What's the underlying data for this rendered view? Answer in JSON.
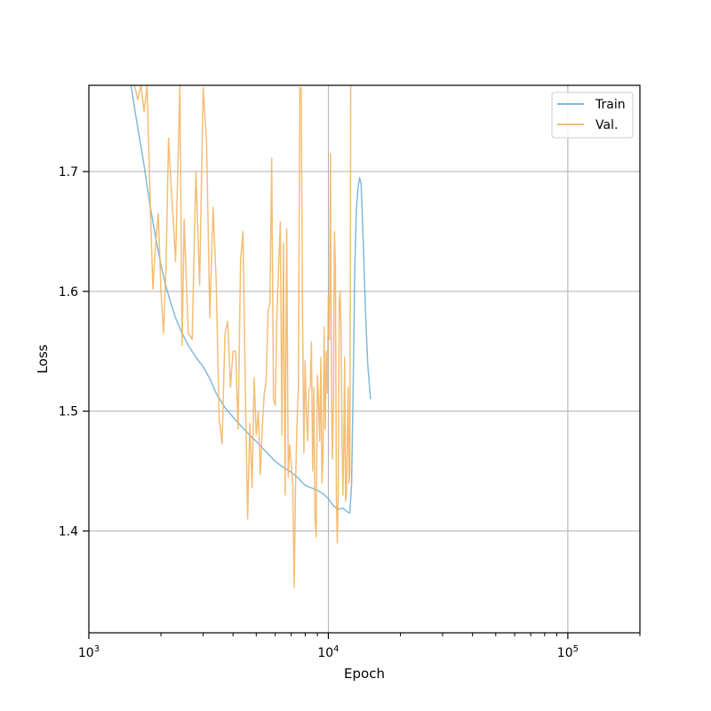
{
  "chart_data": {
    "type": "line",
    "title": "",
    "xlabel": "Epoch",
    "ylabel": "Loss",
    "xscale": "log",
    "xlim": [
      1000,
      200000
    ],
    "ylim": [
      1.315,
      1.772
    ],
    "grid": true,
    "legend_placement": "top-right",
    "x_ticks": [
      {
        "value": 1000,
        "base": "10",
        "exp": "3"
      },
      {
        "value": 10000,
        "base": "10",
        "exp": "4"
      },
      {
        "value": 100000,
        "base": "10",
        "exp": "5"
      }
    ],
    "y_ticks": [
      {
        "value": 1.4,
        "label": "1.4"
      },
      {
        "value": 1.5,
        "label": "1.5"
      },
      {
        "value": 1.6,
        "label": "1.6"
      },
      {
        "value": 1.7,
        "label": "1.7"
      }
    ],
    "series": [
      {
        "name": "Train",
        "color": "#6baed6",
        "x": [
          1500,
          1560,
          1620,
          1700,
          1800,
          1900,
          2000,
          2100,
          2200,
          2300,
          2450,
          2600,
          2800,
          3000,
          3200,
          3400,
          3700,
          4000,
          4300,
          4700,
          5100,
          5500,
          6000,
          6500,
          7000,
          7500,
          8000,
          8500,
          9000,
          9500,
          10000,
          10500,
          11000,
          11500,
          12000,
          12300,
          12500,
          12700,
          12900,
          13100,
          13300,
          13500,
          13700,
          14000,
          14300,
          14600,
          15000
        ],
        "y": [
          1.772,
          1.75,
          1.73,
          1.705,
          1.672,
          1.645,
          1.622,
          1.604,
          1.59,
          1.578,
          1.565,
          1.555,
          1.545,
          1.537,
          1.527,
          1.515,
          1.503,
          1.495,
          1.488,
          1.48,
          1.473,
          1.466,
          1.458,
          1.453,
          1.449,
          1.444,
          1.438,
          1.436,
          1.434,
          1.431,
          1.427,
          1.421,
          1.418,
          1.419,
          1.416,
          1.415,
          1.44,
          1.52,
          1.62,
          1.668,
          1.686,
          1.695,
          1.69,
          1.64,
          1.582,
          1.54,
          1.51
        ]
      },
      {
        "name": "Val.",
        "color": "#f2b35e",
        "x": [
          1550,
          1600,
          1650,
          1700,
          1750,
          1800,
          1850,
          1900,
          1950,
          2000,
          2050,
          2100,
          2150,
          2200,
          2250,
          2300,
          2350,
          2400,
          2450,
          2500,
          2600,
          2700,
          2800,
          2900,
          3000,
          3100,
          3200,
          3300,
          3400,
          3500,
          3600,
          3700,
          3800,
          3900,
          4000,
          4100,
          4200,
          4300,
          4400,
          4500,
          4600,
          4700,
          4800,
          4900,
          5000,
          5100,
          5200,
          5300,
          5400,
          5500,
          5600,
          5700,
          5800,
          5900,
          6000,
          6100,
          6200,
          6300,
          6400,
          6500,
          6600,
          6700,
          6800,
          6900,
          7000,
          7100,
          7200,
          7300,
          7400,
          7500,
          7600,
          7700,
          7800,
          7900,
          8000,
          8100,
          8200,
          8300,
          8400,
          8500,
          8600,
          8700,
          8800,
          8900,
          9000,
          9100,
          9200,
          9300,
          9400,
          9500,
          9600,
          9700,
          9800,
          9900,
          10000,
          10100,
          10200,
          10300,
          10400,
          10500,
          10600,
          10700,
          10800,
          10900,
          11000,
          11100,
          11200,
          11300,
          11400,
          11500,
          11600,
          11700,
          11800,
          11900,
          12000,
          12100,
          12200,
          12300,
          12400,
          12500
        ],
        "y": [
          1.772,
          1.76,
          1.772,
          1.75,
          1.772,
          1.68,
          1.602,
          1.64,
          1.665,
          1.6,
          1.565,
          1.62,
          1.728,
          1.69,
          1.66,
          1.625,
          1.7,
          1.772,
          1.555,
          1.66,
          1.565,
          1.56,
          1.7,
          1.605,
          1.77,
          1.725,
          1.578,
          1.67,
          1.61,
          1.493,
          1.473,
          1.565,
          1.575,
          1.52,
          1.55,
          1.55,
          1.485,
          1.626,
          1.65,
          1.52,
          1.41,
          1.49,
          1.436,
          1.528,
          1.48,
          1.5,
          1.447,
          1.487,
          1.515,
          1.525,
          1.583,
          1.59,
          1.711,
          1.51,
          1.505,
          1.58,
          1.62,
          1.658,
          1.48,
          1.64,
          1.43,
          1.652,
          1.445,
          1.472,
          1.455,
          1.44,
          1.353,
          1.442,
          1.49,
          1.522,
          1.77,
          1.77,
          1.58,
          1.465,
          1.542,
          1.498,
          1.475,
          1.518,
          1.52,
          1.558,
          1.45,
          1.52,
          1.41,
          1.395,
          1.53,
          1.51,
          1.475,
          1.545,
          1.44,
          1.46,
          1.57,
          1.485,
          1.55,
          1.515,
          1.597,
          1.56,
          1.715,
          1.525,
          1.46,
          1.508,
          1.65,
          1.62,
          1.428,
          1.39,
          1.43,
          1.59,
          1.6,
          1.57,
          1.48,
          1.43,
          1.47,
          1.545,
          1.425,
          1.43,
          1.48,
          1.52,
          1.44,
          1.45,
          1.772,
          1.772
        ]
      }
    ]
  }
}
